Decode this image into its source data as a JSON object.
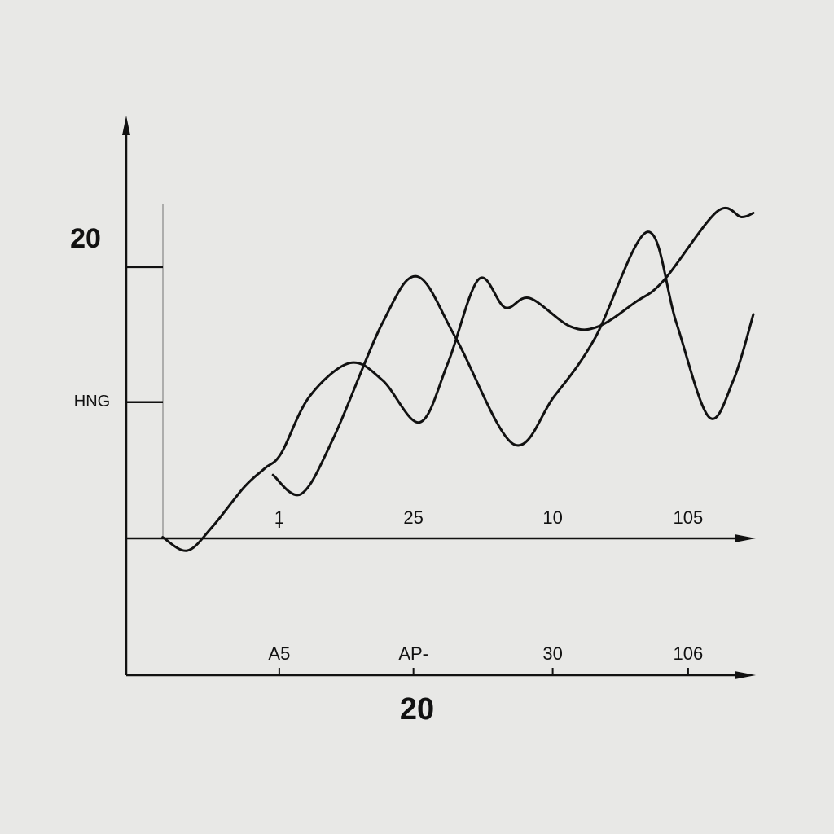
{
  "chart_data": {
    "type": "line",
    "xlabel": "20",
    "xlim": [
      0,
      100
    ],
    "ylim": [
      -10,
      31
    ],
    "xticks": [
      {
        "value": 24.4,
        "label": "1"
      },
      {
        "value": 45.8,
        "label": "25"
      },
      {
        "value": 68,
        "label": "10"
      },
      {
        "value": 89.6,
        "label": "105"
      }
    ],
    "x2ticks": [
      {
        "value": 24.4,
        "label": "A5"
      },
      {
        "value": 45.8,
        "label": "AP-"
      },
      {
        "value": 68,
        "label": "30"
      },
      {
        "value": 89.6,
        "label": "106"
      }
    ],
    "yticks": [
      {
        "value": 10,
        "label": "HNG"
      },
      20
    ],
    "series": [
      {
        "color": "#111111",
        "x": [
          5.8,
          9.7,
          13.6,
          18.8,
          22.1,
          24.7,
          29.2,
          35.7,
          40.9,
          46.8,
          51.3,
          56.2,
          60.4,
          64.3,
          70.8,
          75.3,
          81.2,
          85.7,
          94.2,
          98.1,
          100
        ],
        "values": [
          0,
          -1.0,
          0.7,
          3.7,
          5.1,
          6.2,
          10.4,
          12.9,
          11.6,
          8.5,
          12.9,
          19.1,
          17.0,
          17.7,
          15.6,
          15.6,
          17.4,
          19.0,
          24.1,
          23.7,
          24.0
        ]
      },
      {
        "color": "#111111",
        "x": [
          23.4,
          27.9,
          33.1,
          40.9,
          46.4,
          52.6,
          61.7,
          68.2,
          74.7,
          83.1,
          87.7,
          92.9,
          96.8,
          100
        ],
        "values": [
          4.6,
          3.2,
          7.4,
          15.9,
          19.3,
          14.7,
          6.9,
          10.4,
          14.7,
          22.6,
          15.9,
          8.9,
          11.6,
          16.5
        ]
      }
    ]
  }
}
